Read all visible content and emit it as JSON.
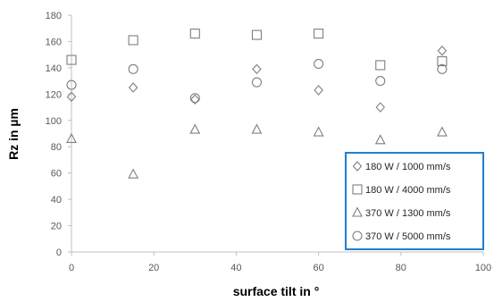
{
  "chart_data": {
    "type": "scatter",
    "title": "",
    "xlabel": "surface tilt in °",
    "ylabel": "Rz in µm",
    "xlim": [
      0,
      100
    ],
    "ylim": [
      0,
      180
    ],
    "xticks": [
      0,
      20,
      40,
      60,
      80,
      100
    ],
    "yticks": [
      0,
      20,
      40,
      60,
      80,
      100,
      120,
      140,
      160,
      180
    ],
    "grid": false,
    "legend_position": "bottom-right",
    "legend_border_color": "#1f7fd4",
    "marker_color": "#7f7f7f",
    "series": [
      {
        "name": "180 W / 1000 mm/s",
        "marker": "diamond",
        "symbol": "◇",
        "x": [
          0,
          15,
          30,
          45,
          60,
          75,
          90
        ],
        "y": [
          118,
          125,
          116,
          139,
          123,
          110,
          153
        ]
      },
      {
        "name": "180 W / 4000 mm/s",
        "marker": "square",
        "symbol": "□",
        "x": [
          0,
          15,
          30,
          45,
          60,
          75,
          90
        ],
        "y": [
          146,
          161,
          166,
          165,
          166,
          142,
          145
        ]
      },
      {
        "name": "370 W / 1300 mm/s",
        "marker": "triangle",
        "symbol": "△",
        "x": [
          0,
          15,
          30,
          45,
          60,
          75,
          90
        ],
        "y": [
          86,
          59,
          93,
          93,
          91,
          85,
          91
        ]
      },
      {
        "name": "370 W / 5000 mm/s",
        "marker": "circle",
        "symbol": "○",
        "x": [
          0,
          15,
          30,
          45,
          60,
          75,
          90
        ],
        "y": [
          127,
          139,
          117,
          129,
          143,
          130,
          139
        ]
      }
    ]
  }
}
